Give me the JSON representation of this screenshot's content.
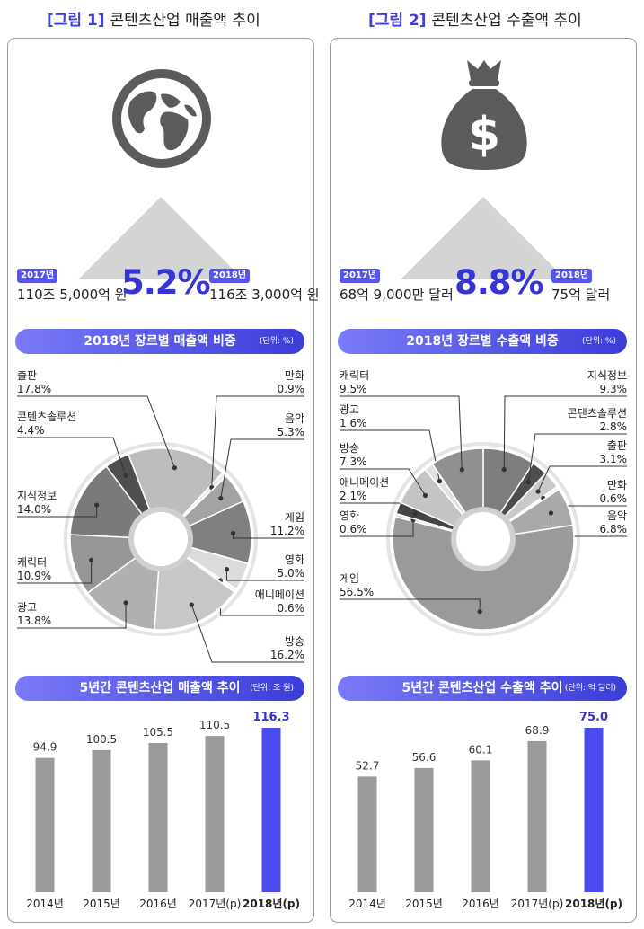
{
  "figure1": {
    "tag": "[그림 1]",
    "title": "콘텐츠산업 매출액 추이",
    "badge_from": "2017년",
    "amount_from": "110조 5,000억 원",
    "change": "5.2%",
    "badge_to": "2018년",
    "amount_to": "116조 3,000억 원",
    "pie_title": "2018년 장르별 매출액 비중",
    "pie_unit": "(단위: %)",
    "bar_title": "5년간 콘텐츠산업 매출액 추이",
    "bar_unit": "(단위: 조 원)",
    "icon": "globe-icon"
  },
  "figure2": {
    "tag": "[그림 2]",
    "title": "콘텐츠산업 수출액 추이",
    "badge_from": "2017년",
    "amount_from": "68억 9,000만 달러",
    "change": "8.8%",
    "badge_to": "2018년",
    "amount_to": "75억 달러",
    "pie_title": "2018년 장르별 수출액 비중",
    "pie_unit": "(단위: %)",
    "bar_title": "5년간 콘텐츠산업 수출액 추이",
    "bar_unit": "(단위: 억 달러)",
    "icon": "money-bag-icon"
  },
  "colors": {
    "accent": "#3535d6",
    "bar": "#9a9a9a",
    "bar_highlight": "#4b4bf0",
    "pill": "#5b5bee"
  },
  "chart_data": [
    {
      "type": "pie",
      "title": "2018년 장르별 매출액 비중",
      "unit": "%",
      "slices": [
        {
          "label": "출판",
          "value": 17.8
        },
        {
          "label": "만화",
          "value": 0.9
        },
        {
          "label": "음악",
          "value": 5.3
        },
        {
          "label": "게임",
          "value": 11.2
        },
        {
          "label": "영화",
          "value": 5.0
        },
        {
          "label": "애니메이션",
          "value": 0.6
        },
        {
          "label": "방송",
          "value": 16.2
        },
        {
          "label": "광고",
          "value": 13.8
        },
        {
          "label": "캐릭터",
          "value": 10.9
        },
        {
          "label": "지식정보",
          "value": 14.0
        },
        {
          "label": "콘텐츠솔루션",
          "value": 4.4
        }
      ]
    },
    {
      "type": "pie",
      "title": "2018년 장르별 수출액 비중",
      "unit": "%",
      "slices": [
        {
          "label": "지식정보",
          "value": 9.3
        },
        {
          "label": "콘텐츠솔루션",
          "value": 2.8
        },
        {
          "label": "출판",
          "value": 3.1
        },
        {
          "label": "만화",
          "value": 0.6
        },
        {
          "label": "음악",
          "value": 6.8
        },
        {
          "label": "게임",
          "value": 56.5
        },
        {
          "label": "영화",
          "value": 0.6
        },
        {
          "label": "애니메이션",
          "value": 2.1
        },
        {
          "label": "방송",
          "value": 7.3
        },
        {
          "label": "광고",
          "value": 1.6
        },
        {
          "label": "캐릭터",
          "value": 9.5
        }
      ]
    },
    {
      "type": "bar",
      "title": "5년간 콘텐츠산업 매출액 추이",
      "unit": "조 원",
      "categories": [
        "2014년",
        "2015년",
        "2016년",
        "2017년(p)",
        "2018년(p)"
      ],
      "values": [
        94.9,
        100.5,
        105.5,
        110.5,
        116.3
      ],
      "value_labels": [
        "94.9",
        "100.5",
        "105.5",
        "110.5",
        "116.3"
      ],
      "highlight_index": 4
    },
    {
      "type": "bar",
      "title": "5년간 콘텐츠산업 수출액 추이",
      "unit": "억 달러",
      "categories": [
        "2014년",
        "2015년",
        "2016년",
        "2017년(p)",
        "2018년(p)"
      ],
      "values": [
        52.7,
        56.6,
        60.1,
        68.9,
        75.0
      ],
      "value_labels": [
        "52.7",
        "56.6",
        "60.1",
        "68.9",
        "75.0"
      ],
      "highlight_index": 4
    }
  ]
}
